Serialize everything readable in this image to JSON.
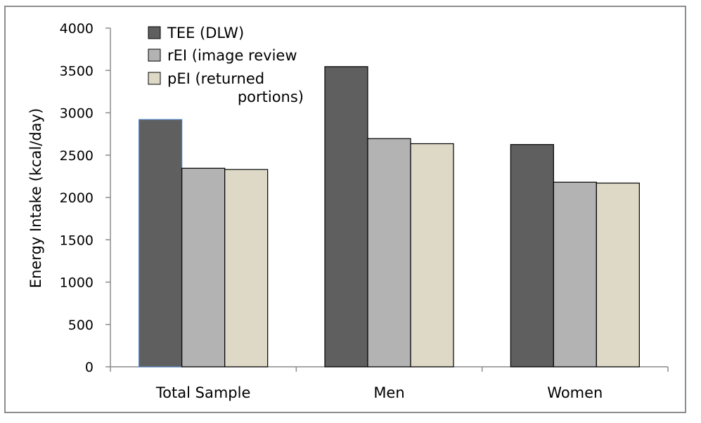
{
  "chart_data": {
    "type": "bar",
    "title": "",
    "xlabel": "",
    "ylabel": "Energy Intake (kcal/day)",
    "ylim": [
      0,
      4000
    ],
    "yticks": [
      0,
      500,
      1000,
      1500,
      2000,
      2500,
      3000,
      3500,
      4000
    ],
    "categories": [
      "Total Sample",
      "Men",
      "Women"
    ],
    "series": [
      {
        "name": "TEE (DLW)",
        "color": "#5f5f5f",
        "values": [
          2920,
          3545,
          2625
        ]
      },
      {
        "name": "rEI (image review",
        "color": "#b3b3b3",
        "values": [
          2345,
          2695,
          2180
        ]
      },
      {
        "name": "pEI (returned portions)",
        "name_lines": [
          "pEI (returned",
          "portions)"
        ],
        "color": "#ddd9c6",
        "values": [
          2330,
          2635,
          2170
        ]
      }
    ],
    "legend_position": "top-left",
    "grid": false
  }
}
